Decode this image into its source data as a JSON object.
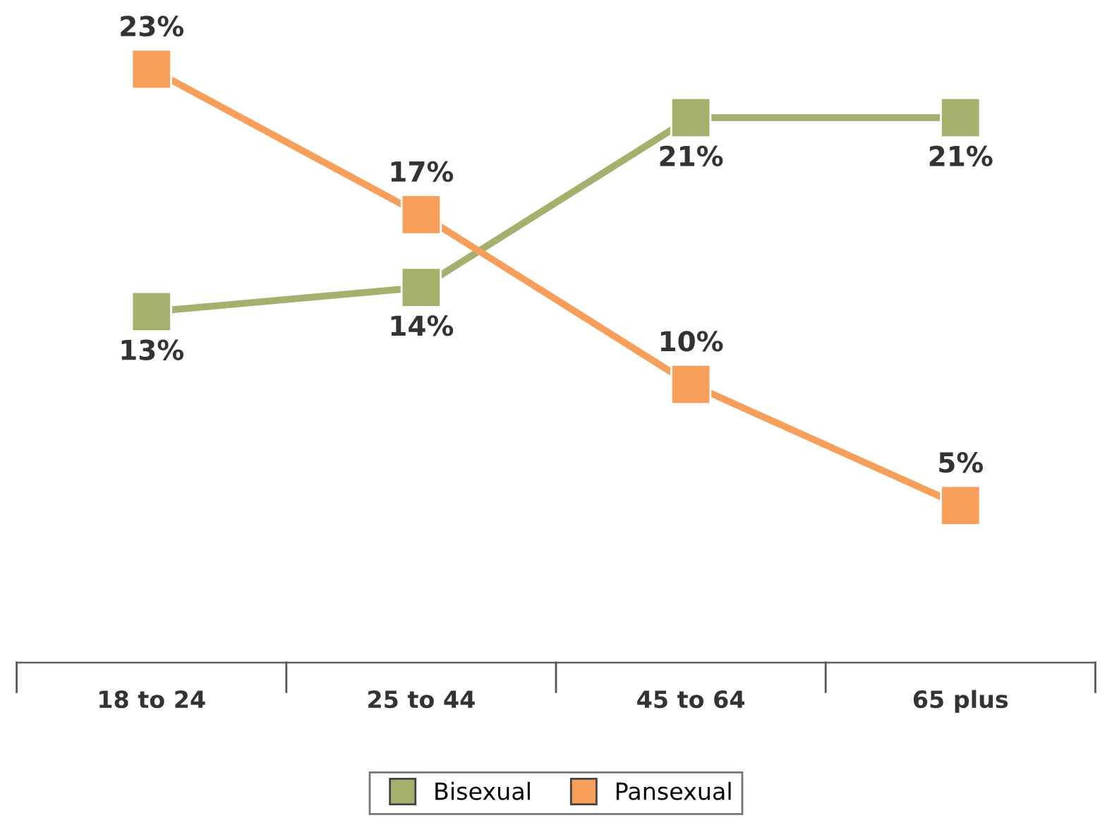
{
  "chart_data": {
    "type": "line",
    "categories": [
      "18 to 24",
      "25 to 44",
      "45 to 64",
      "65 plus"
    ],
    "series": [
      {
        "name": "Bisexual",
        "color": "#a4b06c",
        "values": [
          13,
          14,
          21,
          21
        ],
        "value_labels": [
          "13%",
          "14%",
          "21%",
          "21%"
        ]
      },
      {
        "name": "Pansexual",
        "color": "#f79f5a",
        "values": [
          23,
          17,
          10,
          5
        ],
        "value_labels": [
          "23%",
          "17%",
          "10%",
          "5%"
        ]
      }
    ],
    "marker": "square",
    "line_style": "solid",
    "grid": false,
    "legend": "bottom"
  }
}
